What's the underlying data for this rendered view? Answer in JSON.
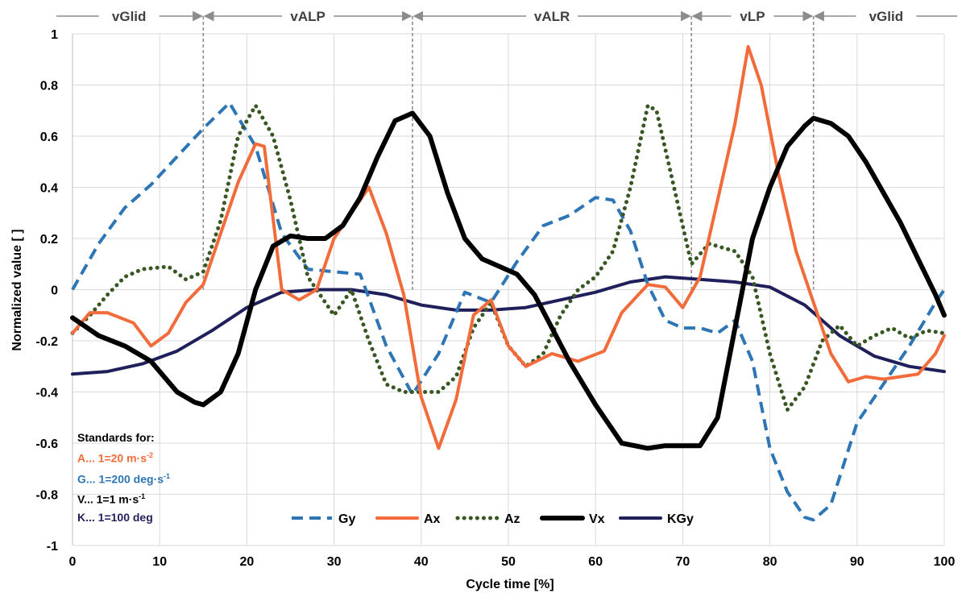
{
  "chart_data": {
    "type": "line",
    "xlabel": "Cycle time [%]",
    "ylabel": "Normalized value  [ ]",
    "xlim": [
      0,
      100
    ],
    "ylim": [
      -1,
      1
    ],
    "xticks": [
      "0",
      "10",
      "20",
      "30",
      "40",
      "50",
      "60",
      "70",
      "80",
      "90",
      "100"
    ],
    "yticks": [
      "1",
      "0.8",
      "0.6",
      "0.4",
      "0.2",
      "0",
      "-0.2",
      "-0.4",
      "-0.6",
      "-0.8",
      "-1"
    ],
    "grid": true,
    "legend_position": "bottom-center",
    "phases": [
      {
        "label": "vGlid",
        "start": 0,
        "end": 15
      },
      {
        "label": "vALP",
        "start": 15,
        "end": 39
      },
      {
        "label": "vALR",
        "start": 39,
        "end": 71
      },
      {
        "label": "vLP",
        "start": 71,
        "end": 85
      },
      {
        "label": "vGlid",
        "start": 85,
        "end": 100
      }
    ],
    "phase_boundaries": [
      15,
      39,
      71,
      85
    ],
    "series": [
      {
        "name": "Gy",
        "color": "#2E75B6",
        "dash": "dashed",
        "x": [
          0,
          3,
          6,
          9,
          12,
          15,
          18,
          21,
          24,
          27,
          30,
          33,
          36,
          39,
          42,
          45,
          48,
          51,
          54,
          57,
          60,
          62,
          64,
          66,
          68,
          70,
          72,
          74,
          76,
          78,
          80,
          82,
          84,
          85,
          87,
          90,
          93,
          96,
          99,
          100
        ],
        "y": [
          0.0,
          0.18,
          0.32,
          0.41,
          0.52,
          0.63,
          0.73,
          0.56,
          0.22,
          0.08,
          0.07,
          0.06,
          -0.22,
          -0.41,
          -0.25,
          -0.01,
          -0.05,
          0.11,
          0.25,
          0.29,
          0.36,
          0.35,
          0.23,
          0.02,
          -0.12,
          -0.15,
          -0.15,
          -0.17,
          -0.12,
          -0.28,
          -0.62,
          -0.79,
          -0.89,
          -0.9,
          -0.84,
          -0.52,
          -0.37,
          -0.22,
          -0.05,
          0.0
        ]
      },
      {
        "name": "Ax",
        "color": "#F26B3A",
        "dash": "solid",
        "x": [
          0,
          2,
          4,
          7,
          9,
          11,
          13,
          15,
          17,
          19,
          21,
          22,
          24,
          26,
          28,
          30,
          32,
          34,
          36,
          38,
          40,
          42,
          44,
          46,
          48,
          50,
          52,
          55,
          58,
          61,
          63,
          66,
          68,
          70,
          72,
          74,
          76,
          77.5,
          79,
          81,
          83,
          85,
          87,
          89,
          91,
          93,
          95,
          97,
          99,
          100
        ],
        "y": [
          -0.17,
          -0.09,
          -0.09,
          -0.13,
          -0.22,
          -0.17,
          -0.05,
          0.02,
          0.22,
          0.42,
          0.57,
          0.56,
          0.0,
          -0.04,
          0.0,
          0.2,
          0.3,
          0.4,
          0.22,
          -0.02,
          -0.42,
          -0.62,
          -0.43,
          -0.1,
          -0.04,
          -0.22,
          -0.3,
          -0.25,
          -0.28,
          -0.24,
          -0.09,
          0.02,
          0.01,
          -0.07,
          0.05,
          0.35,
          0.65,
          0.95,
          0.8,
          0.45,
          0.15,
          -0.05,
          -0.25,
          -0.36,
          -0.34,
          -0.35,
          -0.34,
          -0.33,
          -0.25,
          -0.18
        ]
      },
      {
        "name": "Az",
        "color": "#385723",
        "dash": "dotted",
        "x": [
          0,
          2,
          4,
          6,
          8,
          11,
          13,
          15,
          17,
          19,
          21,
          23,
          25,
          27,
          30,
          32,
          34,
          36,
          38,
          40,
          42,
          44,
          46,
          48,
          50,
          52,
          54,
          56,
          58,
          60,
          62,
          64,
          66,
          67,
          69,
          71,
          73,
          76,
          78,
          80,
          82,
          84,
          86,
          88,
          90,
          92,
          94,
          96,
          98,
          100
        ],
        "y": [
          -0.17,
          -0.1,
          -0.02,
          0.05,
          0.08,
          0.09,
          0.04,
          0.07,
          0.27,
          0.6,
          0.72,
          0.6,
          0.35,
          0.05,
          -0.1,
          0.0,
          -0.2,
          -0.37,
          -0.4,
          -0.4,
          -0.4,
          -0.34,
          -0.15,
          -0.05,
          -0.22,
          -0.3,
          -0.25,
          -0.1,
          0.0,
          0.05,
          0.15,
          0.4,
          0.72,
          0.7,
          0.4,
          0.1,
          0.18,
          0.15,
          0.05,
          -0.25,
          -0.47,
          -0.38,
          -0.2,
          -0.14,
          -0.22,
          -0.18,
          -0.15,
          -0.19,
          -0.16,
          -0.17
        ]
      },
      {
        "name": "Vx",
        "color": "#000000",
        "dash": "solid",
        "x": [
          0,
          3,
          6,
          9,
          12,
          14,
          15,
          17,
          19,
          21,
          23,
          25,
          27,
          29,
          31,
          33,
          35,
          37,
          39,
          41,
          43,
          45,
          47,
          49,
          51,
          53,
          55,
          57,
          60,
          63,
          66,
          68,
          70,
          72,
          74,
          76,
          78,
          80,
          82,
          84,
          85,
          87,
          89,
          91,
          93,
          95,
          97,
          99,
          100
        ],
        "y": [
          -0.11,
          -0.18,
          -0.22,
          -0.28,
          -0.4,
          -0.44,
          -0.45,
          -0.4,
          -0.25,
          0.0,
          0.17,
          0.21,
          0.2,
          0.2,
          0.25,
          0.36,
          0.52,
          0.66,
          0.69,
          0.6,
          0.38,
          0.2,
          0.12,
          0.09,
          0.06,
          -0.02,
          -0.15,
          -0.28,
          -0.45,
          -0.6,
          -0.62,
          -0.61,
          -0.61,
          -0.61,
          -0.5,
          -0.15,
          0.2,
          0.4,
          0.56,
          0.64,
          0.67,
          0.65,
          0.6,
          0.5,
          0.38,
          0.26,
          0.12,
          -0.02,
          -0.1
        ]
      },
      {
        "name": "KGy",
        "color": "#1F1F5C",
        "dash": "solid",
        "x": [
          0,
          4,
          8,
          12,
          16,
          20,
          24,
          28,
          32,
          36,
          40,
          44,
          48,
          52,
          56,
          60,
          64,
          68,
          72,
          76,
          80,
          84,
          88,
          92,
          96,
          100
        ],
        "y": [
          -0.33,
          -0.32,
          -0.29,
          -0.24,
          -0.16,
          -0.07,
          -0.01,
          0.0,
          0.0,
          -0.02,
          -0.06,
          -0.08,
          -0.08,
          -0.07,
          -0.04,
          -0.01,
          0.03,
          0.05,
          0.04,
          0.03,
          0.01,
          -0.06,
          -0.18,
          -0.26,
          -0.3,
          -0.32
        ]
      }
    ]
  },
  "standards": {
    "title": "Standards for:",
    "lines": [
      {
        "prefix": "A... 1=20 m·s",
        "sup": "-2",
        "color": "#F26B3A"
      },
      {
        "prefix": "G... 1=200 deg·s",
        "sup": "-1",
        "color": "#2E75B6"
      },
      {
        "prefix": "V... 1=1 m·s",
        "sup": "-1",
        "color": "#000000"
      },
      {
        "prefix": "K... 1=100 deg",
        "sup": "",
        "color": "#1F1F5C"
      }
    ]
  }
}
